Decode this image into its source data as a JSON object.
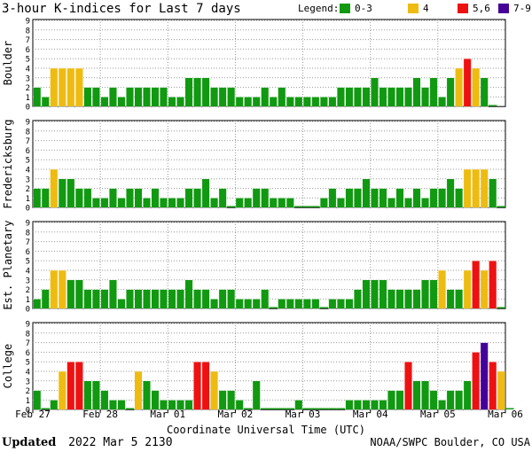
{
  "header": {
    "title": "3-hour K-indices for Last 7 days",
    "legend_label": "Legend:"
  },
  "legend": [
    {
      "label": "0-3",
      "color": "#119911"
    },
    {
      "label": "4",
      "color": "#eebb11"
    },
    {
      "label": "5,6",
      "color": "#ee1111"
    },
    {
      "label": "7-9",
      "color": "#440099"
    }
  ],
  "footer": {
    "updated_label": "Updated",
    "updated_value": "2022 Mar  5 2130",
    "source": "NOAA/SWPC Boulder, CO USA"
  },
  "chart_data": {
    "type": "bar",
    "title": "3-hour K-indices for Last 7 days",
    "xlabel": "Coordinate Universal Time (UTC)",
    "x_tick_labels": [
      "Feb 27",
      "Feb 28",
      "Mar 01",
      "Mar 02",
      "Mar 03",
      "Mar 04",
      "Mar 05",
      "Mar 06"
    ],
    "y_ticks": [
      "0",
      "1",
      "2",
      "3",
      "4",
      "5",
      "6",
      "7",
      "8",
      "9"
    ],
    "ylim": [
      0,
      9
    ],
    "bars_per_day": 8,
    "grid": true,
    "color_scale": [
      {
        "range": "0-3",
        "color": "#119911"
      },
      {
        "range": "4",
        "color": "#eebb11"
      },
      {
        "range": "5,6",
        "color": "#ee1111"
      },
      {
        "range": "7-9",
        "color": "#440099"
      }
    ],
    "panels": [
      {
        "name": "Boulder",
        "values": [
          2,
          1,
          4,
          4,
          4,
          4,
          2,
          2,
          1,
          2,
          1,
          2,
          2,
          2,
          2,
          2,
          1,
          1,
          3,
          3,
          3,
          2,
          2,
          2,
          1,
          1,
          1,
          2,
          1,
          2,
          1,
          1,
          1,
          1,
          1,
          1,
          2,
          2,
          2,
          2,
          3,
          2,
          2,
          2,
          2,
          3,
          2,
          3,
          1,
          3,
          4,
          5,
          4,
          3,
          0
        ]
      },
      {
        "name": "Fredericksburg",
        "values": [
          2,
          2,
          4,
          3,
          3,
          2,
          2,
          1,
          1,
          2,
          1,
          2,
          2,
          1,
          2,
          1,
          1,
          1,
          2,
          2,
          3,
          1,
          2,
          0,
          1,
          1,
          2,
          2,
          1,
          1,
          1,
          0,
          0,
          0,
          1,
          2,
          1,
          2,
          2,
          3,
          2,
          2,
          1,
          2,
          1,
          2,
          1,
          2,
          2,
          3,
          2,
          4,
          4,
          4,
          3,
          0
        ]
      },
      {
        "name": "Est. Planetary",
        "values": [
          1,
          2,
          4,
          4,
          3,
          3,
          2,
          2,
          2,
          3,
          1,
          2,
          2,
          2,
          2,
          2,
          2,
          2,
          3,
          2,
          2,
          1,
          2,
          2,
          1,
          1,
          1,
          2,
          0,
          1,
          1,
          1,
          1,
          1,
          0,
          1,
          1,
          1,
          2,
          3,
          3,
          3,
          2,
          2,
          2,
          2,
          3,
          3,
          4,
          2,
          2,
          4,
          5,
          4,
          5,
          0
        ]
      },
      {
        "name": "College",
        "values": [
          2,
          0,
          1,
          4,
          5,
          5,
          3,
          3,
          2,
          1,
          1,
          0,
          4,
          3,
          2,
          1,
          1,
          1,
          1,
          5,
          5,
          4,
          2,
          2,
          1,
          0,
          3,
          0,
          0,
          0,
          0,
          1,
          0,
          0,
          0,
          0,
          0,
          1,
          1,
          1,
          1,
          1,
          2,
          2,
          5,
          3,
          3,
          2,
          1,
          2,
          2,
          3,
          6,
          7,
          5,
          4,
          0
        ]
      }
    ]
  }
}
